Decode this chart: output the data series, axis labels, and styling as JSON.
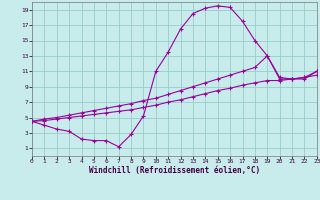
{
  "xlabel": "Windchill (Refroidissement éolien,°C)",
  "bg_color": "#c8ecec",
  "line_color": "#990099",
  "grid_color": "#99cccc",
  "xlim": [
    0,
    23
  ],
  "ylim": [
    0,
    20
  ],
  "xticks": [
    0,
    1,
    2,
    3,
    4,
    5,
    6,
    7,
    8,
    9,
    10,
    11,
    12,
    13,
    14,
    15,
    16,
    17,
    18,
    19,
    20,
    21,
    22,
    23
  ],
  "yticks": [
    1,
    3,
    5,
    7,
    9,
    11,
    13,
    15,
    17,
    19
  ],
  "line1_x": [
    0,
    1,
    2,
    3,
    4,
    5,
    6,
    7,
    8,
    9,
    10,
    11,
    12,
    13,
    14,
    15,
    16,
    17,
    18,
    19,
    20,
    21,
    22,
    23
  ],
  "line1_y": [
    4.5,
    4.0,
    3.5,
    3.2,
    2.2,
    2.0,
    2.0,
    1.2,
    2.8,
    5.2,
    11.0,
    13.5,
    16.5,
    18.5,
    19.2,
    19.5,
    19.3,
    17.5,
    15.0,
    13.0,
    10.0,
    10.0,
    10.0,
    11.0
  ],
  "line2_x": [
    0,
    1,
    2,
    3,
    4,
    5,
    6,
    7,
    8,
    9,
    10,
    11,
    12,
    13,
    14,
    15,
    16,
    17,
    18,
    19,
    20,
    21,
    22,
    23
  ],
  "line2_y": [
    4.5,
    4.8,
    5.0,
    5.3,
    5.6,
    5.9,
    6.2,
    6.5,
    6.8,
    7.2,
    7.5,
    8.0,
    8.5,
    9.0,
    9.5,
    10.0,
    10.5,
    11.0,
    11.5,
    13.0,
    10.2,
    10.0,
    10.2,
    11.0
  ],
  "line3_x": [
    0,
    1,
    2,
    3,
    4,
    5,
    6,
    7,
    8,
    9,
    10,
    11,
    12,
    13,
    14,
    15,
    16,
    17,
    18,
    19,
    20,
    21,
    22,
    23
  ],
  "line3_y": [
    4.5,
    4.6,
    4.8,
    5.0,
    5.2,
    5.4,
    5.6,
    5.8,
    6.0,
    6.3,
    6.6,
    7.0,
    7.3,
    7.7,
    8.1,
    8.5,
    8.8,
    9.2,
    9.5,
    9.8,
    9.8,
    10.0,
    10.2,
    10.5
  ]
}
